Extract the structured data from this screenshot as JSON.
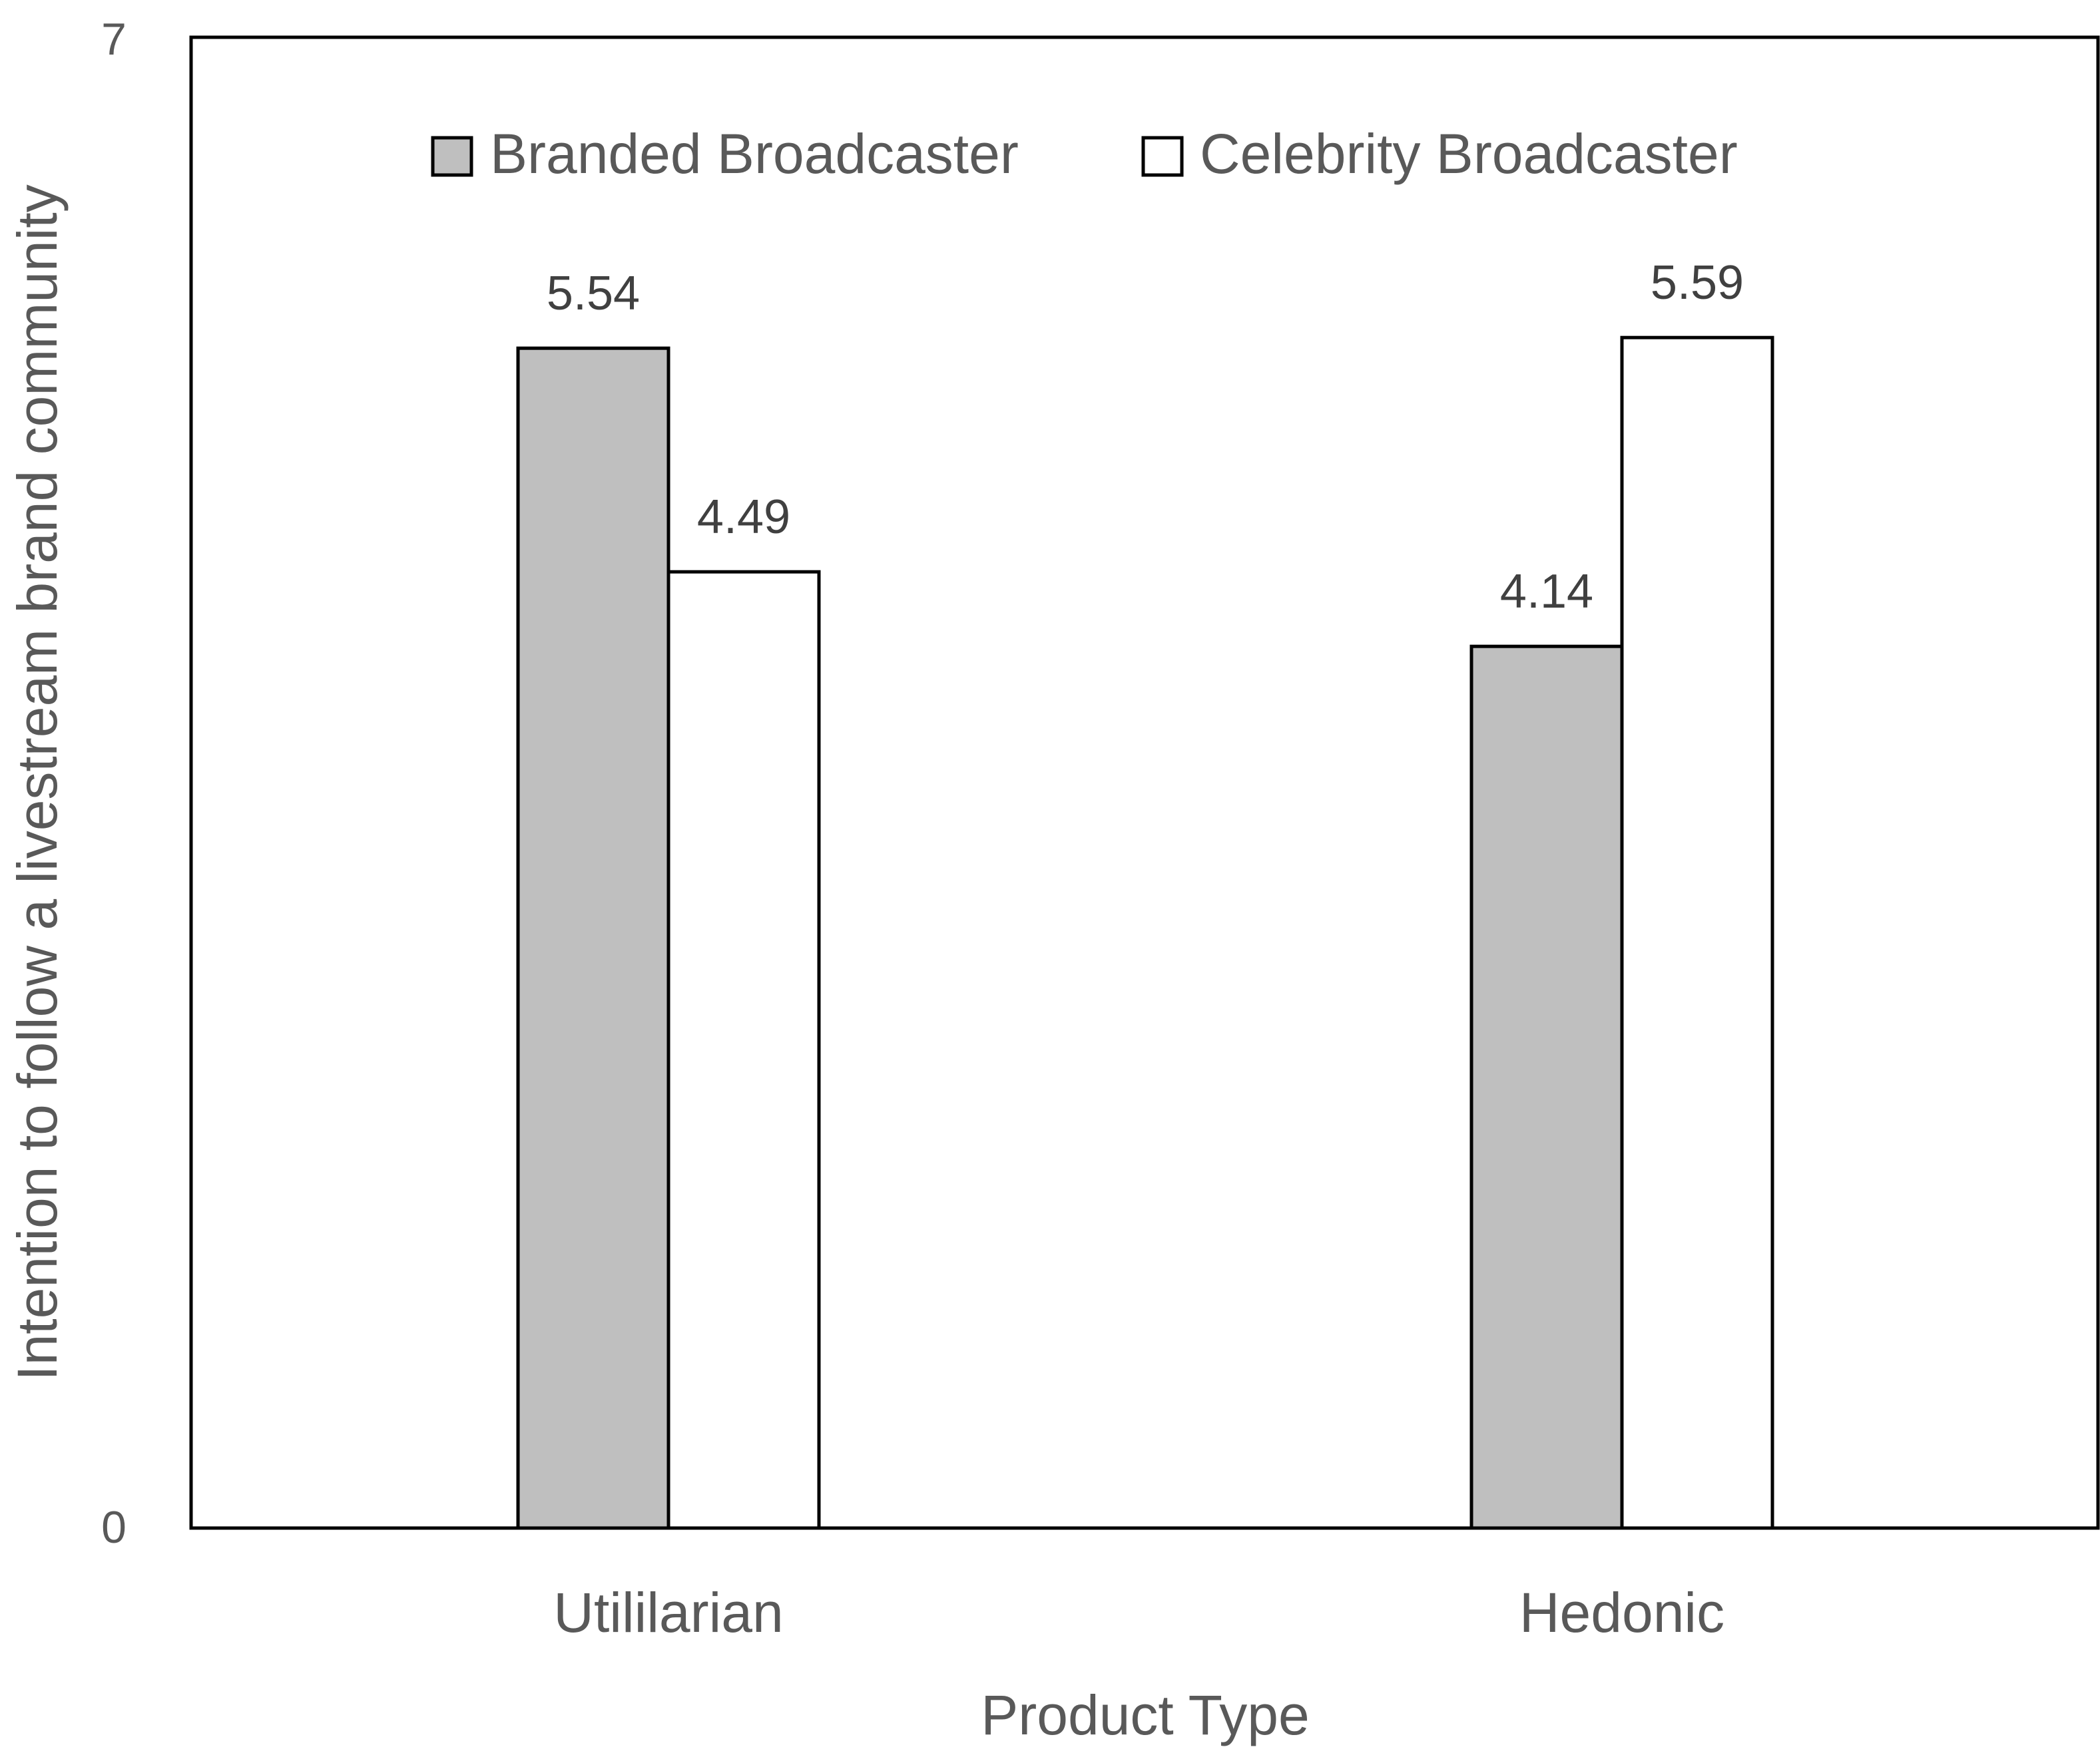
{
  "chart_data": {
    "type": "bar",
    "categories": [
      "Utililarian",
      "Hedonic"
    ],
    "series": [
      {
        "name": "Branded Broadcaster",
        "values": [
          5.54,
          4.14
        ],
        "labels": [
          "5.54",
          "4.14"
        ],
        "color": "#bfbfbf"
      },
      {
        "name": "Celebrity Broadcaster",
        "values": [
          4.49,
          5.59
        ],
        "labels": [
          "4.49",
          "5.59"
        ],
        "color": "#ffffff"
      }
    ],
    "xlabel": "Product Type",
    "ylabel": "Intention to follow a livestream brand community",
    "ylim": [
      0,
      7
    ],
    "yticks": [
      "0",
      "7"
    ],
    "grid": false,
    "legend": "top-center"
  }
}
